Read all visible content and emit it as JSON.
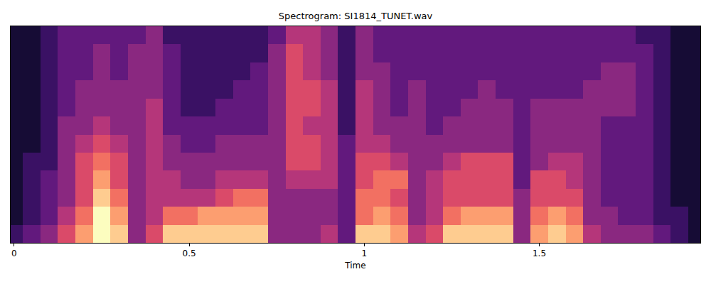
{
  "chart_data": {
    "type": "heatmap",
    "title": "Spectrogram: SI1814_TUNET.wav",
    "x_label": "Time",
    "xlim": [
      -0.01,
      1.96
    ],
    "xticks": [
      0,
      0.5,
      1,
      1.5
    ],
    "ylim": [
      -0.5,
      11.5
    ],
    "tick_labels": "x",
    "zlim": [
      0,
      10
    ],
    "x": [
      0,
      0.05,
      0.1,
      0.15,
      0.2,
      0.25,
      0.3,
      0.35,
      0.4,
      0.45,
      0.5,
      0.55,
      0.6,
      0.65,
      0.7,
      0.75,
      0.8,
      0.85,
      0.9,
      0.95,
      1,
      1.05,
      1.1,
      1.15,
      1.2,
      1.25,
      1.3,
      1.35,
      1.4,
      1.45,
      1.5,
      1.55,
      1.6,
      1.65,
      1.7,
      1.75,
      1.8,
      1.85,
      1.9,
      1.95
    ],
    "y": [
      0,
      1,
      2,
      3,
      4,
      5,
      6,
      7,
      8,
      9,
      10,
      11
    ],
    "z": [
      [
        2,
        3,
        4,
        6,
        8,
        10,
        9,
        4,
        6,
        9,
        9,
        9,
        9,
        9,
        9,
        4,
        4,
        4,
        5,
        3,
        9,
        9,
        8,
        5,
        6,
        9,
        9,
        9,
        9,
        4,
        8,
        9,
        8,
        5,
        4,
        4,
        4,
        3,
        2,
        1
      ],
      [
        1,
        2,
        3,
        5,
        7,
        10,
        8,
        4,
        5,
        7,
        7,
        8,
        8,
        8,
        8,
        4,
        4,
        4,
        4,
        3,
        7,
        8,
        7,
        4,
        5,
        7,
        8,
        8,
        8,
        4,
        7,
        8,
        7,
        4,
        4,
        3,
        3,
        2,
        2,
        1
      ],
      [
        1,
        2,
        3,
        4,
        6,
        9,
        7,
        4,
        5,
        5,
        5,
        5,
        6,
        7,
        7,
        4,
        4,
        4,
        4,
        3,
        7,
        7,
        6,
        4,
        5,
        6,
        6,
        6,
        6,
        4,
        6,
        6,
        6,
        4,
        3,
        3,
        3,
        2,
        1,
        1
      ],
      [
        1,
        2,
        3,
        4,
        6,
        8,
        6,
        4,
        5,
        5,
        4,
        4,
        5,
        5,
        5,
        4,
        5,
        5,
        5,
        3,
        6,
        7,
        7,
        4,
        5,
        6,
        6,
        6,
        6,
        3,
        6,
        6,
        5,
        4,
        3,
        3,
        3,
        2,
        1,
        1
      ],
      [
        1,
        2,
        2,
        4,
        6,
        7,
        6,
        4,
        5,
        4,
        4,
        4,
        4,
        4,
        4,
        4,
        6,
        6,
        5,
        3,
        6,
        6,
        5,
        4,
        4,
        5,
        6,
        6,
        6,
        3,
        4,
        5,
        5,
        4,
        3,
        3,
        3,
        2,
        1,
        1
      ],
      [
        1,
        1,
        2,
        4,
        5,
        6,
        5,
        4,
        5,
        4,
        3,
        3,
        4,
        4,
        4,
        4,
        6,
        6,
        5,
        3,
        5,
        5,
        4,
        4,
        4,
        4,
        4,
        4,
        4,
        3,
        4,
        4,
        4,
        4,
        3,
        3,
        3,
        2,
        1,
        1
      ],
      [
        1,
        1,
        2,
        4,
        4,
        5,
        4,
        4,
        5,
        3,
        3,
        3,
        3,
        3,
        3,
        4,
        6,
        5,
        5,
        2,
        5,
        4,
        4,
        4,
        3,
        4,
        4,
        4,
        4,
        3,
        4,
        4,
        4,
        4,
        3,
        3,
        3,
        2,
        1,
        1
      ],
      [
        1,
        1,
        2,
        3,
        4,
        4,
        4,
        4,
        5,
        3,
        2,
        2,
        3,
        3,
        3,
        4,
        6,
        6,
        5,
        2,
        5,
        4,
        3,
        4,
        3,
        3,
        4,
        4,
        4,
        3,
        4,
        4,
        4,
        4,
        4,
        4,
        3,
        2,
        1,
        1
      ],
      [
        1,
        1,
        2,
        3,
        4,
        4,
        4,
        4,
        4,
        3,
        2,
        2,
        2,
        3,
        3,
        4,
        6,
        6,
        5,
        2,
        5,
        4,
        3,
        4,
        3,
        3,
        3,
        4,
        3,
        3,
        3,
        3,
        3,
        4,
        4,
        4,
        3,
        2,
        1,
        1
      ],
      [
        1,
        1,
        2,
        3,
        3,
        4,
        3,
        4,
        4,
        3,
        2,
        2,
        2,
        2,
        3,
        4,
        6,
        5,
        4,
        2,
        4,
        4,
        3,
        3,
        3,
        3,
        3,
        3,
        3,
        3,
        3,
        3,
        3,
        3,
        4,
        4,
        3,
        2,
        1,
        1
      ],
      [
        1,
        1,
        2,
        3,
        3,
        4,
        3,
        4,
        4,
        3,
        2,
        2,
        2,
        2,
        2,
        4,
        6,
        5,
        4,
        2,
        4,
        3,
        3,
        3,
        3,
        3,
        3,
        3,
        3,
        3,
        3,
        3,
        3,
        3,
        3,
        3,
        3,
        2,
        1,
        1
      ],
      [
        1,
        1,
        2,
        3,
        3,
        3,
        3,
        3,
        4,
        2,
        2,
        2,
        2,
        2,
        2,
        3,
        5,
        5,
        4,
        2,
        4,
        3,
        3,
        3,
        3,
        3,
        3,
        3,
        3,
        3,
        3,
        3,
        3,
        3,
        3,
        3,
        2,
        2,
        1,
        1
      ]
    ]
  }
}
